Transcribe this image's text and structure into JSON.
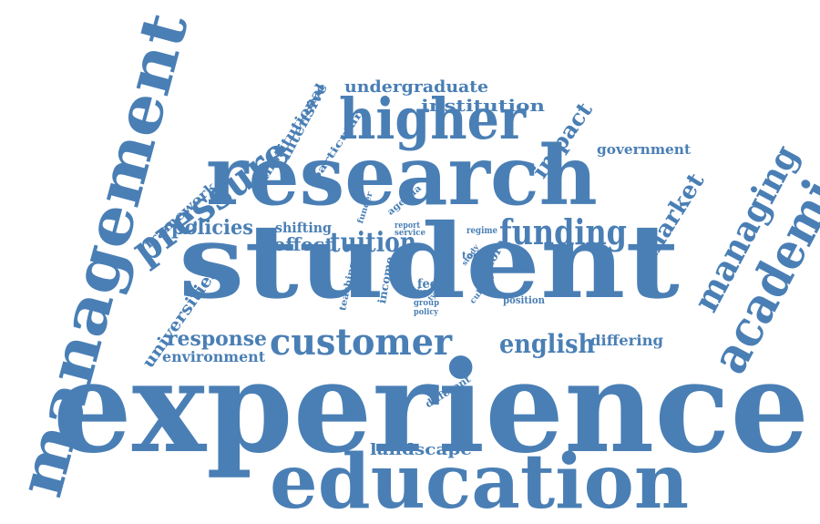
{
  "style": {
    "word_color": "#4a7fb5",
    "background": "#ffffff"
  },
  "words": [
    {
      "id": "experience",
      "text": "experience"
    },
    {
      "id": "student",
      "text": "student"
    },
    {
      "id": "research",
      "text": "research"
    },
    {
      "id": "education",
      "text": "education"
    },
    {
      "id": "management",
      "text": "management"
    },
    {
      "id": "higher",
      "text": "higher"
    },
    {
      "id": "academic",
      "text": "academic"
    },
    {
      "id": "pressure",
      "text": "pressure"
    },
    {
      "id": "customer",
      "text": "customer"
    },
    {
      "id": "managing",
      "text": "managing"
    },
    {
      "id": "funding",
      "text": "funding"
    },
    {
      "id": "tuition",
      "text": "tuition"
    },
    {
      "id": "english",
      "text": "english"
    },
    {
      "id": "market",
      "text": "market"
    },
    {
      "id": "policies",
      "text": "policies"
    },
    {
      "id": "response",
      "text": "response"
    },
    {
      "id": "impact",
      "text": "impact"
    },
    {
      "id": "undergraduate",
      "text": "undergraduate"
    },
    {
      "id": "institution",
      "text": "institution"
    },
    {
      "id": "effect",
      "text": "effect"
    },
    {
      "id": "universities",
      "text": "universities"
    },
    {
      "id": "environment",
      "text": "environment"
    },
    {
      "id": "landscape",
      "text": "landscape"
    },
    {
      "id": "differing",
      "text": "differing"
    },
    {
      "id": "government",
      "text": "government"
    },
    {
      "id": "framework",
      "text": "framework"
    },
    {
      "id": "intensive",
      "text": "intensive"
    },
    {
      "id": "institutional",
      "text": "institutional"
    },
    {
      "id": "shifting",
      "text": "shifting"
    },
    {
      "id": "particular",
      "text": "particular"
    },
    {
      "id": "agenda",
      "text": "agenda"
    },
    {
      "id": "more",
      "text": "more"
    },
    {
      "id": "today",
      "text": "today"
    },
    {
      "id": "position",
      "text": "position"
    },
    {
      "id": "teaching",
      "text": "teaching"
    },
    {
      "id": "income",
      "text": "income"
    },
    {
      "id": "fee",
      "text": "fee"
    },
    {
      "id": "form",
      "text": "form"
    },
    {
      "id": "type",
      "text": "type"
    },
    {
      "id": "group",
      "text": "group"
    },
    {
      "id": "policy",
      "text": "policy"
    },
    {
      "id": "culture",
      "text": "culture"
    },
    {
      "id": "study",
      "text": "study"
    },
    {
      "id": "report",
      "text": "report"
    },
    {
      "id": "service",
      "text": "service"
    },
    {
      "id": "regime",
      "text": "regime"
    },
    {
      "id": "funder",
      "text": "funder"
    },
    {
      "id": "different",
      "text": "different"
    }
  ]
}
